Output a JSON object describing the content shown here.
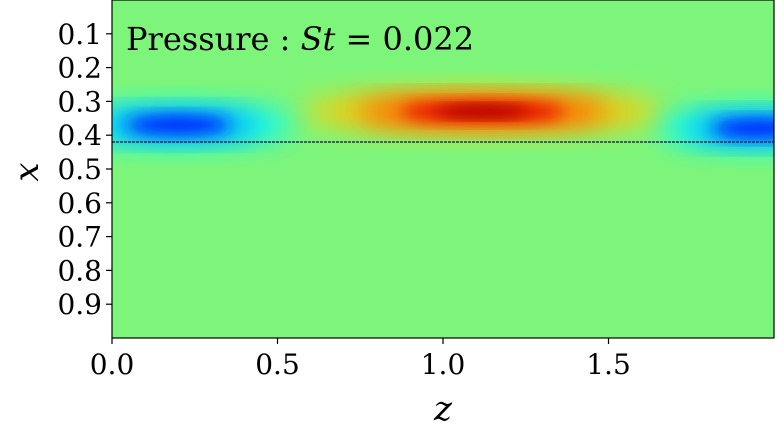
{
  "chart_data": {
    "type": "heatmap",
    "title": "Pressure : ",
    "title_math": "St",
    "title_value": " = 0.022",
    "xlabel": "z",
    "ylabel": "x",
    "xlim": [
      0.0,
      2.0
    ],
    "ylim": [
      1.0,
      0.0
    ],
    "x_ticks": [
      {
        "value": 0.0,
        "label": "0.0"
      },
      {
        "value": 0.5,
        "label": "0.5"
      },
      {
        "value": 1.0,
        "label": "1.0"
      },
      {
        "value": 1.5,
        "label": "1.5"
      }
    ],
    "y_ticks": [
      {
        "value": 0.1,
        "label": "0.1"
      },
      {
        "value": 0.2,
        "label": "0.2"
      },
      {
        "value": 0.3,
        "label": "0.3"
      },
      {
        "value": 0.4,
        "label": "0.4"
      },
      {
        "value": 0.5,
        "label": "0.5"
      },
      {
        "value": 0.6,
        "label": "0.6"
      },
      {
        "value": 0.7,
        "label": "0.7"
      },
      {
        "value": 0.8,
        "label": "0.8"
      },
      {
        "value": 0.9,
        "label": "0.9"
      }
    ],
    "colormap": "jet",
    "background_color": "#7df57a",
    "features": [
      {
        "name": "high-pressure-core",
        "z_center": 1.12,
        "x_center": 0.33,
        "z_halfwidth": 0.55,
        "x_halfwidth": 0.06,
        "level": 0.95
      },
      {
        "name": "low-pressure-band-left",
        "z_center": 0.2,
        "x_center": 0.37,
        "z_halfwidth": 0.35,
        "x_halfwidth": 0.06,
        "level": -0.7
      },
      {
        "name": "low-pressure-band-right",
        "z_center": 1.95,
        "x_center": 0.38,
        "z_halfwidth": 0.3,
        "x_halfwidth": 0.06,
        "level": -0.7
      }
    ],
    "interface_line": {
      "x": 0.42,
      "z_start": 0.0,
      "z_end": 2.0,
      "color": "#2a2a6a"
    },
    "grid": false,
    "legend": "none"
  }
}
